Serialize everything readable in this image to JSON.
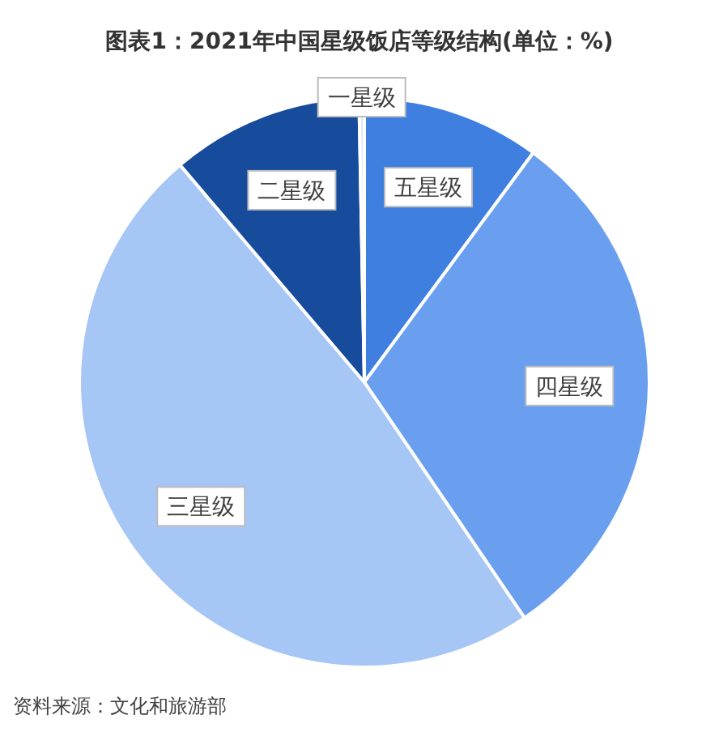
{
  "chart_data": {
    "type": "pie",
    "title": "图表1：2021年中国星级饭店等级结构(单位：%)",
    "categories": [
      "五星级",
      "四星级",
      "三星级",
      "二星级",
      "一星级"
    ],
    "values": [
      10.1,
      30.4,
      48.3,
      10.9,
      0.3
    ],
    "colors": [
      "#3f7fe0",
      "#6a9ff0",
      "#a6c6f5",
      "#174b9c",
      "#dce8f9"
    ],
    "annotations": [
      "资料来源：文化和旅游部"
    ]
  }
}
